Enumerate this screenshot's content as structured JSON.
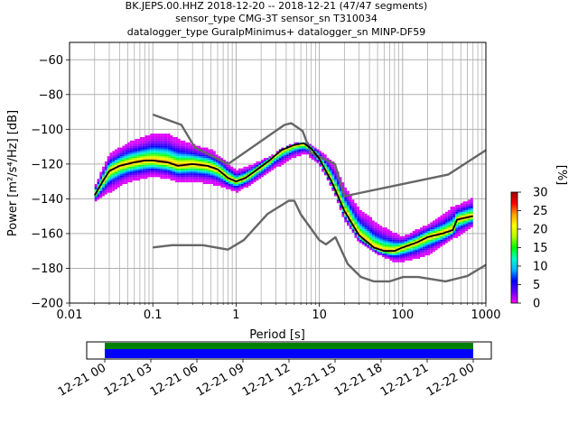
{
  "title_lines": [
    "BK.JEPS.00.HHZ   2018-12-20 -- 2018-12-21  (47/47 segments)",
    "sensor_type CMG-3T sensor_sn T310034",
    "datalogger_type GuralpMinimus+ datalogger_sn MINP-DF59"
  ],
  "colors": {
    "model_curves": "#666666",
    "mean_curve": "#000000",
    "grid": "#b0b0b0",
    "timeline_good": "#008000",
    "timeline_data": "#0000ff"
  },
  "colormap_stops": [
    "#ff00ff",
    "#6a00ff",
    "#0000ff",
    "#00b4ff",
    "#00ffc8",
    "#00ff00",
    "#b4ff00",
    "#ffff00",
    "#ffa000",
    "#ff0000",
    "#a00000"
  ],
  "chart_data": {
    "type": "heatmap",
    "xlabel": "Period [s]",
    "ylabel": "Power [m²/s⁴/Hz] [dB]",
    "xscale": "log",
    "xlim": [
      0.01,
      1000
    ],
    "ylim": [
      -200,
      -50
    ],
    "grid": true,
    "xticks": [
      {
        "value": 0.01,
        "label": "0.01"
      },
      {
        "value": 0.1,
        "label": "0.1"
      },
      {
        "value": 1,
        "label": "1"
      },
      {
        "value": 10,
        "label": "10"
      },
      {
        "value": 100,
        "label": "100"
      },
      {
        "value": 1000,
        "label": "1000"
      }
    ],
    "yticks": [
      {
        "value": -60,
        "label": "−60"
      },
      {
        "value": -80,
        "label": "−80"
      },
      {
        "value": -100,
        "label": "−100"
      },
      {
        "value": -120,
        "label": "−120"
      },
      {
        "value": -140,
        "label": "−140"
      },
      {
        "value": -160,
        "label": "−160"
      },
      {
        "value": -180,
        "label": "−180"
      },
      {
        "value": -200,
        "label": "−200"
      }
    ],
    "colorbar": {
      "label": "[%]",
      "range": [
        0,
        30
      ],
      "ticks": [
        {
          "value": 0,
          "label": "0"
        },
        {
          "value": 5,
          "label": "5"
        },
        {
          "value": 10,
          "label": "10"
        },
        {
          "value": 15,
          "label": "15"
        },
        {
          "value": 20,
          "label": "20"
        },
        {
          "value": 25,
          "label": "25"
        },
        {
          "value": 30,
          "label": "30"
        }
      ]
    },
    "mean_psd": [
      [
        0.02,
        -138
      ],
      [
        0.025,
        -130
      ],
      [
        0.03,
        -124
      ],
      [
        0.04,
        -121
      ],
      [
        0.06,
        -119
      ],
      [
        0.08,
        -118
      ],
      [
        0.1,
        -118
      ],
      [
        0.15,
        -119
      ],
      [
        0.2,
        -121
      ],
      [
        0.3,
        -120
      ],
      [
        0.45,
        -121
      ],
      [
        0.6,
        -123
      ],
      [
        0.8,
        -128
      ],
      [
        1.0,
        -130
      ],
      [
        1.3,
        -128
      ],
      [
        1.7,
        -124
      ],
      [
        2.5,
        -118
      ],
      [
        3.5,
        -112
      ],
      [
        5,
        -109
      ],
      [
        6.5,
        -108
      ],
      [
        8,
        -111
      ],
      [
        10,
        -117
      ],
      [
        14,
        -130
      ],
      [
        20,
        -147
      ],
      [
        30,
        -161
      ],
      [
        45,
        -168
      ],
      [
        60,
        -170
      ],
      [
        80,
        -170
      ],
      [
        100,
        -168
      ],
      [
        150,
        -165
      ],
      [
        200,
        -162
      ],
      [
        300,
        -160
      ],
      [
        400,
        -158
      ],
      [
        450,
        -152
      ],
      [
        550,
        -151
      ],
      [
        700,
        -150
      ]
    ],
    "psd_band": {
      "upper": [
        [
          0.02,
          -133
        ],
        [
          0.03,
          -115
        ],
        [
          0.05,
          -108
        ],
        [
          0.08,
          -105
        ],
        [
          0.1,
          -103
        ],
        [
          0.15,
          -103
        ],
        [
          0.2,
          -106
        ],
        [
          0.3,
          -109
        ],
        [
          0.5,
          -112
        ],
        [
          0.7,
          -117
        ],
        [
          1.0,
          -124
        ],
        [
          1.5,
          -121
        ],
        [
          2,
          -118
        ],
        [
          3,
          -114
        ],
        [
          5,
          -109
        ],
        [
          7,
          -107
        ],
        [
          10,
          -112
        ],
        [
          15,
          -120
        ],
        [
          20,
          -133
        ],
        [
          30,
          -146
        ],
        [
          50,
          -155
        ],
        [
          80,
          -160
        ],
        [
          100,
          -162
        ],
        [
          150,
          -158
        ],
        [
          200,
          -155
        ],
        [
          300,
          -150
        ],
        [
          400,
          -145
        ],
        [
          700,
          -140
        ]
      ],
      "lower": [
        [
          0.02,
          -142
        ],
        [
          0.03,
          -136
        ],
        [
          0.05,
          -130
        ],
        [
          0.08,
          -128
        ],
        [
          0.1,
          -127
        ],
        [
          0.15,
          -128
        ],
        [
          0.2,
          -130
        ],
        [
          0.3,
          -130
        ],
        [
          0.5,
          -131
        ],
        [
          0.7,
          -133
        ],
        [
          1.0,
          -136
        ],
        [
          1.5,
          -132
        ],
        [
          2,
          -128
        ],
        [
          3,
          -122
        ],
        [
          5,
          -116
        ],
        [
          7,
          -114
        ],
        [
          10,
          -120
        ],
        [
          15,
          -136
        ],
        [
          20,
          -152
        ],
        [
          30,
          -165
        ],
        [
          50,
          -172
        ],
        [
          80,
          -176
        ],
        [
          100,
          -176
        ],
        [
          150,
          -174
        ],
        [
          200,
          -172
        ],
        [
          300,
          -167
        ],
        [
          400,
          -163
        ],
        [
          700,
          -156
        ]
      ]
    },
    "noise_model_high": [
      [
        0.1,
        -91.5
      ],
      [
        0.22,
        -97.4
      ],
      [
        0.32,
        -110.5
      ],
      [
        0.8,
        -120
      ],
      [
        3.8,
        -97.5
      ],
      [
        4.6,
        -96.5
      ],
      [
        6.3,
        -101
      ],
      [
        7.9,
        -113.5
      ],
      [
        15.4,
        -120
      ],
      [
        20,
        -138.5
      ],
      [
        354.8,
        -126
      ],
      [
        1000,
        -112
      ]
    ],
    "noise_model_low": [
      [
        0.1,
        -168
      ],
      [
        0.17,
        -166.7
      ],
      [
        0.4,
        -166.7
      ],
      [
        0.8,
        -169.2
      ],
      [
        1.24,
        -163.7
      ],
      [
        2.4,
        -148.6
      ],
      [
        4.3,
        -141.1
      ],
      [
        5,
        -141.1
      ],
      [
        6,
        -149
      ],
      [
        10,
        -163.8
      ],
      [
        12,
        -166.2
      ],
      [
        15.6,
        -162.1
      ],
      [
        21.9,
        -177.5
      ],
      [
        31.6,
        -185
      ],
      [
        45,
        -187.5
      ],
      [
        70,
        -187.5
      ],
      [
        101,
        -185
      ],
      [
        154,
        -185
      ],
      [
        328,
        -187.5
      ],
      [
        600,
        -184.4
      ],
      [
        1000,
        -178
      ]
    ]
  },
  "timeline": {
    "ticks": [
      "12-21 00",
      "12-21 03",
      "12-21 06",
      "12-21 09",
      "12-21 12",
      "12-21 15",
      "12-21 18",
      "12-21 21",
      "12-22 00"
    ],
    "coverage_fraction": [
      0,
      1
    ]
  }
}
